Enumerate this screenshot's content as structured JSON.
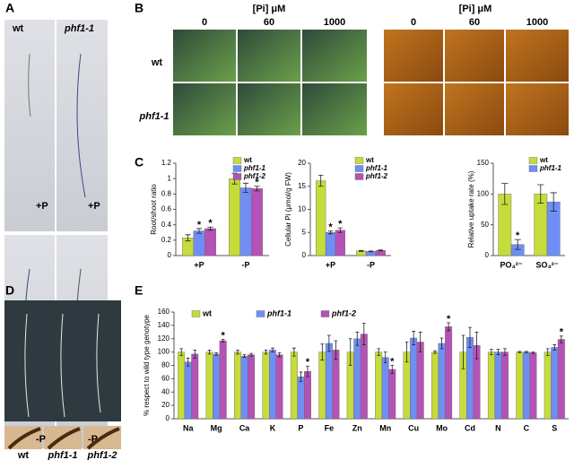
{
  "panel_labels": [
    "A",
    "B",
    "C",
    "D",
    "E"
  ],
  "panel_a": {
    "genotypes": [
      "wt",
      "phf1-1"
    ],
    "conditions": [
      "+P",
      "+P",
      "-P",
      "-P"
    ]
  },
  "panel_b": {
    "headers": [
      "[Pi] μM",
      "[Pi] μM"
    ],
    "concentrations": [
      "0",
      "60",
      "1000",
      "0",
      "60",
      "1000"
    ],
    "rows": [
      "wt",
      "phf1-1"
    ]
  },
  "panel_d": {
    "genotypes": [
      "wt",
      "phf1-1",
      "phf1-2"
    ]
  },
  "chart_data": [
    {
      "type": "bar",
      "y_label": "Root/shoot ratio",
      "categories": [
        "+P",
        "-P"
      ],
      "legend": "upper right",
      "ylim": [
        0,
        1.2
      ],
      "yticks": [
        0,
        0.2,
        0.4,
        0.6,
        0.8,
        1,
        1.2
      ],
      "series": [
        {
          "name": "wt",
          "color": "#c5dc3a",
          "values": [
            0.23,
            1.0
          ],
          "errors": [
            0.04,
            0.07
          ],
          "significance": [
            null,
            null
          ]
        },
        {
          "name": "phf1-1",
          "color": "#6f8ef5",
          "values": [
            0.32,
            0.88
          ],
          "errors": [
            0.03,
            0.06
          ],
          "significance": [
            "*",
            null
          ]
        },
        {
          "name": "phf1-2",
          "color": "#b552b5",
          "values": [
            0.35,
            0.87
          ],
          "errors": [
            0.02,
            0.03
          ],
          "significance": [
            "*",
            "*"
          ]
        }
      ]
    },
    {
      "type": "bar",
      "y_label": "Cellular Pi (μmol/g FW)",
      "categories": [
        "+P",
        "-P"
      ],
      "legend": "upper right",
      "ylim": [
        0,
        20
      ],
      "yticks": [
        0,
        5,
        10,
        15,
        20
      ],
      "series": [
        {
          "name": "wt",
          "color": "#c5dc3a",
          "values": [
            16.2,
            1.0
          ],
          "errors": [
            1.2,
            0.1
          ],
          "significance": [
            null,
            null
          ]
        },
        {
          "name": "phf1-1",
          "color": "#6f8ef5",
          "values": [
            5.0,
            0.9
          ],
          "errors": [
            0.3,
            0.1
          ],
          "significance": [
            "*",
            null
          ]
        },
        {
          "name": "phf1-2",
          "color": "#b552b5",
          "values": [
            5.5,
            1.1
          ],
          "errors": [
            0.5,
            0.1
          ],
          "significance": [
            "*",
            null
          ]
        }
      ]
    },
    {
      "type": "bar",
      "y_label": "Relative uptake rate (%)",
      "categories": [
        "PO₄²⁻",
        "SO₄²⁻"
      ],
      "legend": "upper right",
      "ylim": [
        0,
        150
      ],
      "yticks": [
        0,
        50,
        100,
        150
      ],
      "series": [
        {
          "name": "wt",
          "color": "#c5dc3a",
          "values": [
            100,
            100
          ],
          "errors": [
            17,
            15
          ],
          "significance": [
            null,
            null
          ]
        },
        {
          "name": "phf1-1",
          "color": "#6f8ef5",
          "values": [
            18,
            87
          ],
          "errors": [
            8,
            15
          ],
          "significance": [
            "*",
            null
          ]
        }
      ]
    },
    {
      "type": "bar",
      "y_label": "% respect to wild type genotype",
      "legend": "top",
      "categories": [
        "Na",
        "Mg",
        "Ca",
        "K",
        "P",
        "Fe",
        "Zn",
        "Mn",
        "Cu",
        "Mo",
        "Cd",
        "N",
        "C",
        "S"
      ],
      "ylim": [
        0,
        160
      ],
      "yticks": [
        0,
        20,
        40,
        60,
        80,
        100,
        120,
        140,
        160
      ],
      "series": [
        {
          "name": "wt",
          "color": "#c5dc3a",
          "values": [
            100,
            100,
            100,
            100,
            100,
            100,
            100,
            100,
            100,
            100,
            100,
            100,
            100,
            100
          ],
          "errors": [
            5,
            3,
            3,
            3,
            6,
            12,
            20,
            5,
            15,
            2,
            25,
            4,
            1,
            5
          ],
          "significance": [
            null,
            null,
            null,
            null,
            null,
            null,
            null,
            null,
            null,
            null,
            null,
            null,
            null,
            null
          ]
        },
        {
          "name": "phf1-1",
          "color": "#6f8ef5",
          "values": [
            85,
            97,
            94,
            103,
            63,
            113,
            120,
            92,
            121,
            113,
            122,
            100,
            100,
            107
          ],
          "errors": [
            6,
            2,
            2,
            3,
            7,
            12,
            10,
            8,
            10,
            8,
            15,
            4,
            1,
            4
          ],
          "significance": [
            null,
            null,
            null,
            null,
            null,
            null,
            null,
            null,
            null,
            null,
            null,
            null,
            null,
            null
          ]
        },
        {
          "name": "phf1-2",
          "color": "#b552b5",
          "values": [
            97,
            117,
            96,
            96,
            71,
            103,
            127,
            74,
            115,
            138,
            110,
            100,
            99,
            119
          ],
          "errors": [
            6,
            2,
            2,
            3,
            8,
            14,
            16,
            6,
            15,
            6,
            20,
            5,
            1,
            5
          ],
          "significance": [
            null,
            "*",
            null,
            null,
            "*",
            null,
            null,
            "*",
            null,
            "*",
            null,
            null,
            null,
            "*"
          ]
        }
      ]
    }
  ]
}
